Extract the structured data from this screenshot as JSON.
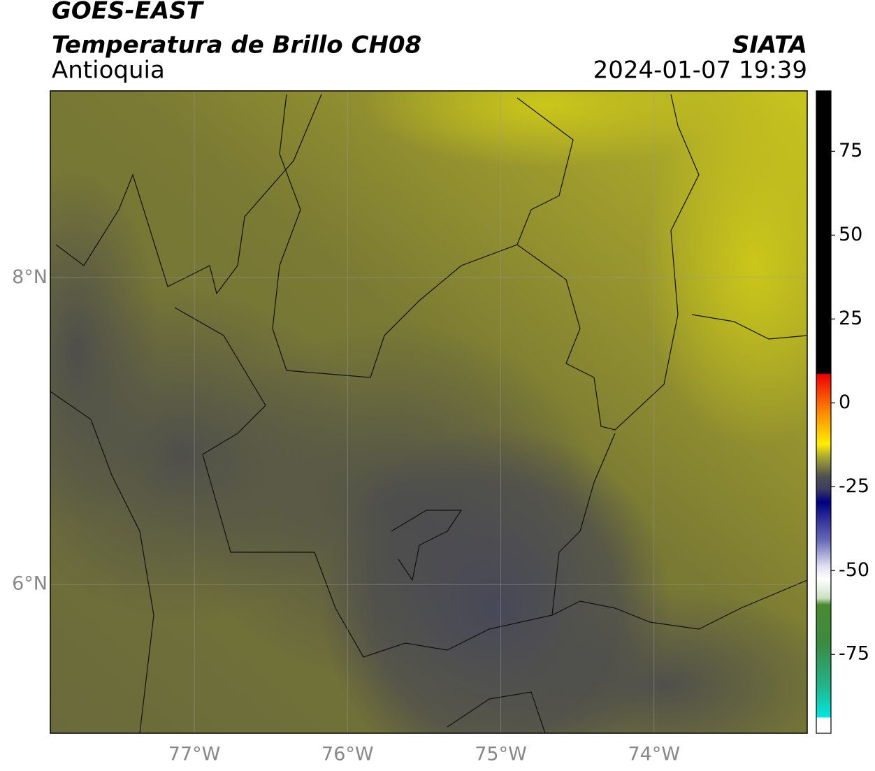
{
  "header": {
    "title": "GOES-EAST",
    "subtitle": "Temperatura de Brillo CH08",
    "region": "Antioquia",
    "source": "SIATA",
    "datetime": "2024-01-07 19:39"
  },
  "map": {
    "lon_lim": [
      -77.94,
      -73.0
    ],
    "lat_lim": [
      5.03,
      9.22
    ],
    "lon_ticks": [
      {
        "value": -77,
        "label": "77°W"
      },
      {
        "value": -76,
        "label": "76°W"
      },
      {
        "value": -75,
        "label": "75°W"
      },
      {
        "value": -74,
        "label": "74°W"
      }
    ],
    "lat_ticks": [
      {
        "value": 8,
        "label": "8°N"
      },
      {
        "value": 6,
        "label": "6°N"
      }
    ]
  },
  "colorbar": {
    "lim": [
      -98.5,
      93
    ],
    "ticks": [
      75,
      50,
      25,
      0,
      -25,
      -50,
      -75
    ]
  }
}
